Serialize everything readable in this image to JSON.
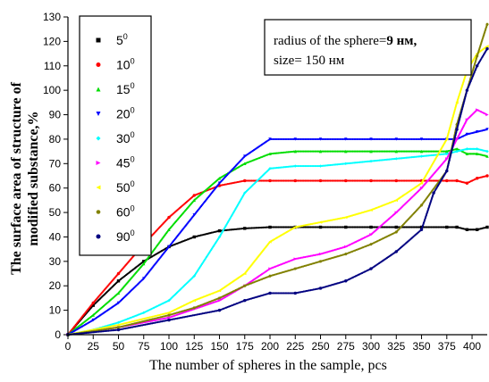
{
  "chart_data": {
    "type": "scatter",
    "xlabel": "The number of spheres in the sample, pcs",
    "ylabel_lines": [
      "The surface area of structure of",
      "modified substance,%"
    ],
    "x_ticks": [
      0,
      25,
      50,
      75,
      100,
      125,
      150,
      175,
      200,
      225,
      250,
      275,
      300,
      325,
      350,
      375,
      400
    ],
    "y_ticks": [
      0,
      10,
      20,
      30,
      40,
      50,
      60,
      70,
      80,
      90,
      100,
      110,
      120,
      130
    ],
    "xlim": [
      0,
      415
    ],
    "ylim": [
      0,
      130
    ],
    "annotation": {
      "line1_pre": "radius of the sphere=",
      "line1_bold": "9 нм,",
      "line2": "size= 150 нм"
    },
    "legend_placement": "top-left",
    "series": [
      {
        "name": "5",
        "deg": "0",
        "color": "#000000",
        "marker": "square",
        "points": [
          [
            0,
            0
          ],
          [
            25,
            12
          ],
          [
            50,
            22
          ],
          [
            75,
            30
          ],
          [
            100,
            36
          ],
          [
            125,
            40
          ],
          [
            150,
            42.5
          ],
          [
            175,
            43.5
          ],
          [
            200,
            44
          ],
          [
            225,
            44
          ],
          [
            250,
            44
          ],
          [
            275,
            44
          ],
          [
            300,
            44
          ],
          [
            325,
            44
          ],
          [
            350,
            44
          ],
          [
            375,
            44
          ],
          [
            385,
            44
          ],
          [
            395,
            43
          ],
          [
            405,
            43
          ],
          [
            415,
            44
          ]
        ]
      },
      {
        "name": "10",
        "deg": "0",
        "color": "#ff0000",
        "marker": "circle",
        "points": [
          [
            0,
            0
          ],
          [
            25,
            13
          ],
          [
            50,
            25
          ],
          [
            75,
            37
          ],
          [
            100,
            48
          ],
          [
            125,
            57
          ],
          [
            150,
            61
          ],
          [
            175,
            63
          ],
          [
            200,
            63
          ],
          [
            225,
            63
          ],
          [
            250,
            63
          ],
          [
            275,
            63
          ],
          [
            300,
            63
          ],
          [
            325,
            63
          ],
          [
            350,
            63
          ],
          [
            375,
            63
          ],
          [
            385,
            63
          ],
          [
            395,
            62
          ],
          [
            405,
            64
          ],
          [
            415,
            65
          ]
        ]
      },
      {
        "name": "15",
        "deg": "0",
        "color": "#00dd00",
        "marker": "triangle-up",
        "points": [
          [
            0,
            0
          ],
          [
            25,
            8
          ],
          [
            50,
            17
          ],
          [
            75,
            29
          ],
          [
            100,
            43
          ],
          [
            125,
            55
          ],
          [
            150,
            64
          ],
          [
            175,
            70
          ],
          [
            200,
            74
          ],
          [
            225,
            75
          ],
          [
            250,
            75
          ],
          [
            275,
            75
          ],
          [
            300,
            75
          ],
          [
            325,
            75
          ],
          [
            350,
            75
          ],
          [
            375,
            75
          ],
          [
            385,
            76
          ],
          [
            395,
            74
          ],
          [
            405,
            74
          ],
          [
            415,
            73
          ]
        ]
      },
      {
        "name": "20",
        "deg": "0",
        "color": "#0000ff",
        "marker": "triangle-down",
        "points": [
          [
            0,
            0
          ],
          [
            25,
            6
          ],
          [
            50,
            13
          ],
          [
            75,
            23
          ],
          [
            100,
            36
          ],
          [
            125,
            49
          ],
          [
            150,
            62
          ],
          [
            175,
            73
          ],
          [
            200,
            80
          ],
          [
            225,
            80
          ],
          [
            250,
            80
          ],
          [
            275,
            80
          ],
          [
            300,
            80
          ],
          [
            325,
            80
          ],
          [
            350,
            80
          ],
          [
            375,
            80
          ],
          [
            385,
            80
          ],
          [
            395,
            82
          ],
          [
            405,
            83
          ],
          [
            415,
            84
          ]
        ]
      },
      {
        "name": "30",
        "deg": "0",
        "color": "#00ffff",
        "marker": "diamond",
        "points": [
          [
            0,
            0
          ],
          [
            25,
            2
          ],
          [
            50,
            5
          ],
          [
            75,
            9
          ],
          [
            100,
            14
          ],
          [
            125,
            24
          ],
          [
            150,
            40
          ],
          [
            175,
            58
          ],
          [
            200,
            68
          ],
          [
            225,
            69
          ],
          [
            250,
            69
          ],
          [
            275,
            70
          ],
          [
            300,
            71
          ],
          [
            325,
            72
          ],
          [
            350,
            73
          ],
          [
            375,
            74
          ],
          [
            385,
            75
          ],
          [
            395,
            76
          ],
          [
            405,
            76
          ],
          [
            415,
            75
          ]
        ]
      },
      {
        "name": "45",
        "deg": "0",
        "color": "#ff00ff",
        "marker": "triangle-right",
        "points": [
          [
            0,
            0
          ],
          [
            50,
            3
          ],
          [
            100,
            7
          ],
          [
            150,
            14
          ],
          [
            175,
            20
          ],
          [
            200,
            27
          ],
          [
            225,
            31
          ],
          [
            250,
            33
          ],
          [
            275,
            36
          ],
          [
            300,
            41
          ],
          [
            325,
            50
          ],
          [
            350,
            60
          ],
          [
            375,
            72
          ],
          [
            385,
            80
          ],
          [
            395,
            88
          ],
          [
            405,
            92
          ],
          [
            415,
            90
          ]
        ]
      },
      {
        "name": "50",
        "deg": "0",
        "color": "#ffff00",
        "marker": "triangle-left",
        "points": [
          [
            0,
            0
          ],
          [
            50,
            4
          ],
          [
            100,
            9
          ],
          [
            125,
            14
          ],
          [
            150,
            18
          ],
          [
            175,
            25
          ],
          [
            200,
            38
          ],
          [
            225,
            44
          ],
          [
            250,
            46
          ],
          [
            275,
            48
          ],
          [
            300,
            51
          ],
          [
            325,
            55
          ],
          [
            350,
            62
          ],
          [
            375,
            80
          ],
          [
            385,
            95
          ],
          [
            395,
            108
          ],
          [
            405,
            115
          ],
          [
            415,
            118
          ]
        ]
      },
      {
        "name": "60",
        "deg": "0",
        "color": "#808000",
        "marker": "hexagon",
        "points": [
          [
            0,
            0
          ],
          [
            50,
            3
          ],
          [
            100,
            8
          ],
          [
            125,
            11
          ],
          [
            150,
            15
          ],
          [
            175,
            20
          ],
          [
            200,
            24
          ],
          [
            225,
            27
          ],
          [
            250,
            30
          ],
          [
            275,
            33
          ],
          [
            300,
            37
          ],
          [
            325,
            42
          ],
          [
            350,
            53
          ],
          [
            375,
            67
          ],
          [
            385,
            86
          ],
          [
            395,
            100
          ],
          [
            405,
            114
          ],
          [
            415,
            127
          ]
        ]
      },
      {
        "name": "90",
        "deg": "0",
        "color": "#000080",
        "marker": "circle",
        "points": [
          [
            0,
            0
          ],
          [
            50,
            2
          ],
          [
            100,
            6
          ],
          [
            150,
            10
          ],
          [
            175,
            14
          ],
          [
            200,
            17
          ],
          [
            225,
            17
          ],
          [
            250,
            19
          ],
          [
            275,
            22
          ],
          [
            300,
            27
          ],
          [
            325,
            34
          ],
          [
            350,
            43
          ],
          [
            362,
            58
          ],
          [
            375,
            67
          ],
          [
            385,
            84
          ],
          [
            395,
            100
          ],
          [
            405,
            110
          ],
          [
            415,
            117
          ]
        ]
      }
    ]
  }
}
